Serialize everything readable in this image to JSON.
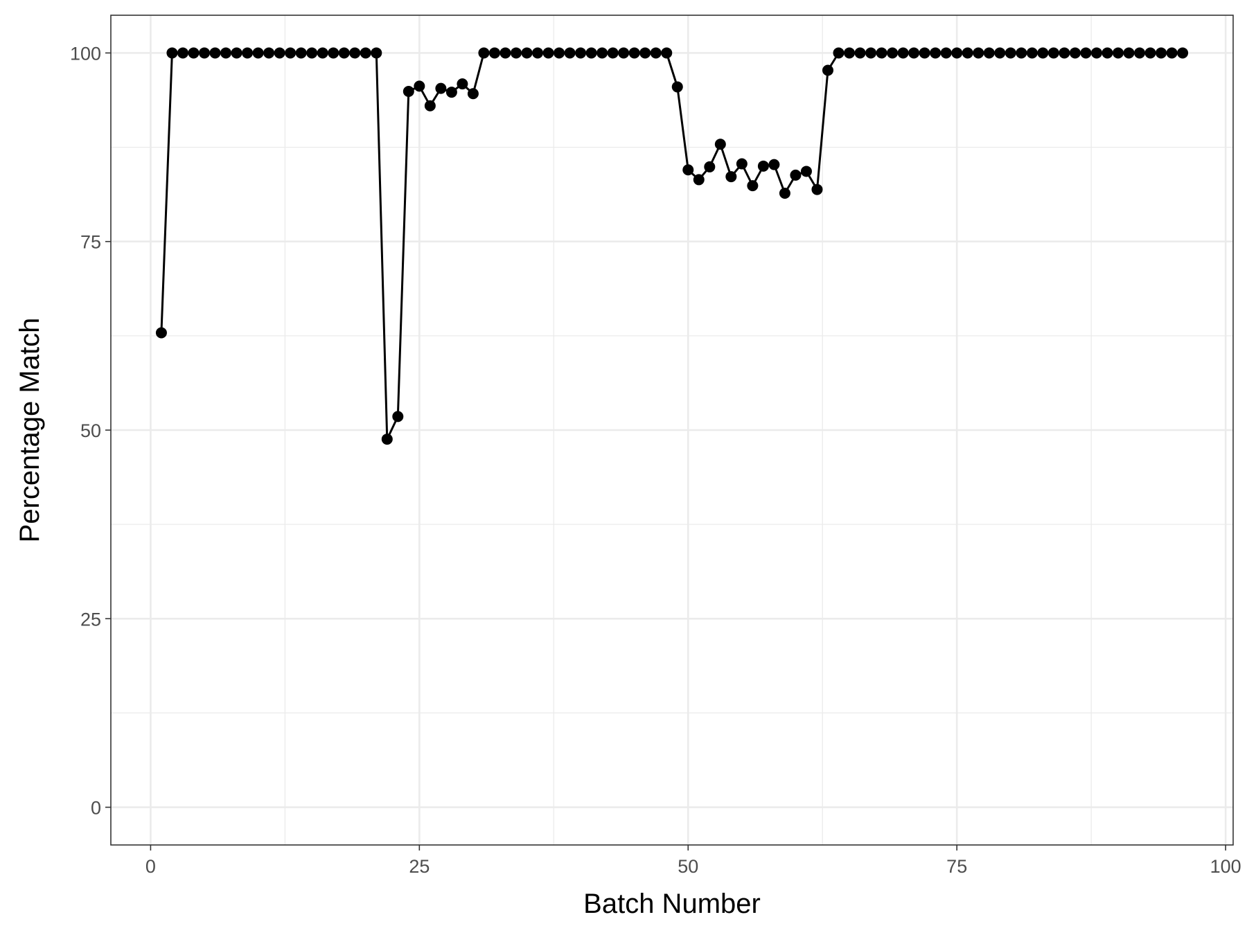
{
  "chart_data": {
    "type": "line",
    "title": "",
    "xlabel": "Batch Number",
    "ylabel": "Percentage Match",
    "xlim": [
      -3.7,
      100.7
    ],
    "ylim": [
      -5,
      105
    ],
    "x_ticks": [
      0,
      25,
      50,
      75,
      100
    ],
    "x_tick_labels": [
      "0",
      "25",
      "50",
      "75",
      "100"
    ],
    "y_ticks": [
      0,
      25,
      50,
      75,
      100
    ],
    "y_tick_labels": [
      "0",
      "25",
      "50",
      "75",
      "100"
    ],
    "x_minor_ticks": [
      12.5,
      37.5,
      62.5,
      87.5
    ],
    "y_minor_ticks": [
      12.5,
      37.5,
      62.5,
      87.5
    ],
    "grid": true,
    "legend": "none",
    "colors": {
      "line": "#000000",
      "point": "#000000",
      "grid": "#ebebeb",
      "border": "#333333"
    },
    "series": [
      {
        "x": [
          1,
          2,
          3,
          4,
          5,
          6,
          7,
          8,
          9,
          10,
          11,
          12,
          13,
          14,
          15,
          16,
          17,
          18,
          19,
          20,
          21,
          22,
          23,
          24,
          25,
          26,
          27,
          28,
          29,
          30,
          31,
          32,
          33,
          34,
          35,
          36,
          37,
          38,
          39,
          40,
          41,
          42,
          43,
          44,
          45,
          46,
          47,
          48,
          49,
          50,
          51,
          52,
          53,
          54,
          55,
          56,
          57,
          58,
          59,
          60,
          61,
          62,
          63,
          64,
          65,
          66,
          67,
          68,
          69,
          70,
          71,
          72,
          73,
          74,
          75,
          76,
          77,
          78,
          79,
          80,
          81,
          82,
          83,
          84,
          85,
          86,
          87,
          88,
          89,
          90,
          91,
          92,
          93,
          94,
          95,
          96
        ],
        "values": [
          62.9,
          100,
          100,
          100,
          100,
          100,
          100,
          100,
          100,
          100,
          100,
          100,
          100,
          100,
          100,
          100,
          100,
          100,
          100,
          100,
          100,
          48.8,
          51.8,
          94.9,
          95.6,
          93,
          95.3,
          94.8,
          95.9,
          94.6,
          100,
          100,
          100,
          100,
          100,
          100,
          100,
          100,
          100,
          100,
          100,
          100,
          100,
          100,
          100,
          100,
          100,
          100,
          95.5,
          84.5,
          83.2,
          84.9,
          87.9,
          83.6,
          85.3,
          82.4,
          85,
          85.2,
          81.4,
          83.8,
          84.3,
          81.9,
          97.7,
          100,
          100,
          100,
          100,
          100,
          100,
          100,
          100,
          100,
          100,
          100,
          100,
          100,
          100,
          100,
          100,
          100,
          100,
          100,
          100,
          100,
          100,
          100,
          100,
          100,
          100,
          100,
          100,
          100,
          100,
          100,
          100,
          100
        ]
      }
    ]
  }
}
